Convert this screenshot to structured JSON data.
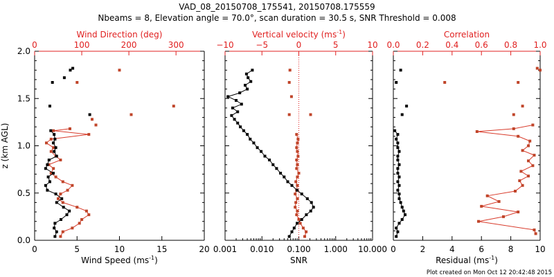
{
  "header": {
    "title": "VAD_08_20150708_175541, 20150708.175559",
    "subtitle": "Nbeams = 8, Elevation angle = 70.0°, scan duration = 30.5 s, SNR Threshold = 0.008"
  },
  "footer": {
    "plot_created": "Plot created on Mon Oct 12 20:42:48 2015"
  },
  "colors": {
    "black_series": "#000000",
    "red_series": "#c0452a",
    "red_axis": "#e02020"
  },
  "chart_data": [
    {
      "type": "scatter",
      "name": "wind-panel",
      "ylabel": "z (km AGL)",
      "ylim": [
        0,
        2
      ],
      "yticks": [
        "0.0",
        "0.5",
        "1.0",
        "1.5",
        "2.0"
      ],
      "bottom_axis": {
        "label_text": "Wind Speed (ms",
        "label_sup": "-1",
        "label_close": ")",
        "range": [
          0,
          20
        ],
        "ticks": [
          {
            "v": 0,
            "t": "0"
          },
          {
            "v": 5,
            "t": "5"
          },
          {
            "v": 10,
            "t": "10"
          },
          {
            "v": 15,
            "t": "15"
          },
          {
            "v": 20,
            "t": "20"
          }
        ]
      },
      "top_axis": {
        "label": "Wind Direction (deg)",
        "range": [
          0,
          360
        ],
        "ticks": [
          {
            "v": 0,
            "t": "0"
          },
          {
            "v": 100,
            "t": "100"
          },
          {
            "v": 200,
            "t": "200"
          },
          {
            "v": 300,
            "t": "300"
          }
        ]
      },
      "black_series": {
        "name": "Wind Speed",
        "axis": "bottom",
        "points": [
          [
            2.4,
            0.04
          ],
          [
            2.6,
            0.09
          ],
          [
            2.3,
            0.13
          ],
          [
            2.4,
            0.18
          ],
          [
            3.1,
            0.22
          ],
          [
            3.8,
            0.27
          ],
          [
            4.1,
            0.31
          ],
          [
            3.4,
            0.35
          ],
          [
            2.6,
            0.4
          ],
          [
            3.2,
            0.44
          ],
          [
            2.5,
            0.49
          ],
          [
            1.5,
            0.53
          ],
          [
            1.3,
            0.58
          ],
          [
            1.8,
            0.62
          ],
          [
            1.6,
            0.67
          ],
          [
            2.2,
            0.71
          ],
          [
            1.3,
            0.76
          ],
          [
            1.5,
            0.8
          ],
          [
            1.7,
            0.85
          ],
          [
            2.6,
            0.89
          ],
          [
            2.3,
            0.94
          ],
          [
            2.5,
            0.98
          ],
          [
            2.2,
            1.03
          ],
          [
            2.4,
            1.07
          ],
          [
            2.3,
            1.12
          ],
          [
            1.9,
            1.16
          ]
        ],
        "isolated": [
          [
            1.8,
            1.42
          ],
          [
            6.5,
            1.33
          ],
          [
            2.1,
            1.67
          ],
          [
            3.5,
            1.72
          ],
          [
            4.2,
            1.8
          ],
          [
            4.5,
            1.82
          ]
        ]
      },
      "red_series": {
        "name": "Wind Direction",
        "axis": "top",
        "points": [
          [
            55,
            0.04
          ],
          [
            60,
            0.09
          ],
          [
            80,
            0.13
          ],
          [
            95,
            0.18
          ],
          [
            100,
            0.22
          ],
          [
            115,
            0.27
          ],
          [
            110,
            0.31
          ],
          [
            90,
            0.35
          ],
          [
            60,
            0.4
          ],
          [
            50,
            0.44
          ],
          [
            55,
            0.49
          ],
          [
            70,
            0.53
          ],
          [
            80,
            0.58
          ],
          [
            60,
            0.62
          ],
          [
            45,
            0.67
          ],
          [
            35,
            0.71
          ],
          [
            40,
            0.76
          ],
          [
            30,
            0.8
          ],
          [
            55,
            0.85
          ],
          [
            45,
            0.89
          ],
          [
            35,
            0.94
          ],
          [
            40,
            0.98
          ],
          [
            25,
            1.03
          ],
          [
            35,
            1.07
          ],
          [
            115,
            1.12
          ],
          [
            40,
            1.16
          ],
          [
            75,
            1.18
          ]
        ],
        "isolated": [
          [
            130,
            1.22
          ],
          [
            122,
            1.28
          ],
          [
            295,
            1.42
          ],
          [
            205,
            1.33
          ],
          [
            90,
            1.67
          ],
          [
            180,
            1.8
          ]
        ]
      }
    },
    {
      "type": "scatter",
      "name": "snr-panel",
      "ylim": [
        0,
        2
      ],
      "bottom_axis": {
        "label": "SNR",
        "range_log10": [
          -3,
          1
        ],
        "ticks": [
          {
            "v": -3,
            "t": "0.001"
          },
          {
            "v": -2,
            "t": "0.010"
          },
          {
            "v": -1,
            "t": "0.100"
          },
          {
            "v": 0,
            "t": "1.000"
          },
          {
            "v": 1,
            "t": "10.000"
          }
        ]
      },
      "top_axis": {
        "label_text": "Vertical velocity (ms",
        "label_sup": "-1",
        "label_close": ")",
        "range": [
          -10,
          10
        ],
        "ticks": [
          {
            "v": -10,
            "t": "−10"
          },
          {
            "v": -5,
            "t": "−5"
          },
          {
            "v": 0,
            "t": "0"
          },
          {
            "v": 5,
            "t": "5"
          },
          {
            "v": 10,
            "t": "10"
          }
        ],
        "reference_line": 0
      },
      "black_series": {
        "name": "SNR",
        "axis": "bottom_log",
        "points": [
          [
            0.055,
            0.04
          ],
          [
            0.065,
            0.09
          ],
          [
            0.075,
            0.13
          ],
          [
            0.09,
            0.18
          ],
          [
            0.12,
            0.22
          ],
          [
            0.16,
            0.27
          ],
          [
            0.21,
            0.31
          ],
          [
            0.25,
            0.35
          ],
          [
            0.22,
            0.4
          ],
          [
            0.17,
            0.44
          ],
          [
            0.12,
            0.49
          ],
          [
            0.09,
            0.53
          ],
          [
            0.065,
            0.58
          ],
          [
            0.05,
            0.62
          ],
          [
            0.04,
            0.67
          ],
          [
            0.032,
            0.71
          ],
          [
            0.025,
            0.76
          ],
          [
            0.02,
            0.8
          ],
          [
            0.016,
            0.85
          ],
          [
            0.012,
            0.89
          ],
          [
            0.0095,
            0.94
          ],
          [
            0.0075,
            0.98
          ],
          [
            0.006,
            1.03
          ],
          [
            0.0048,
            1.07
          ],
          [
            0.004,
            1.12
          ],
          [
            0.0032,
            1.16
          ],
          [
            0.0026,
            1.2
          ],
          [
            0.0022,
            1.24
          ],
          [
            0.0018,
            1.28
          ],
          [
            0.0015,
            1.32
          ],
          [
            0.0022,
            1.36
          ],
          [
            0.0016,
            1.4
          ],
          [
            0.0028,
            1.44
          ],
          [
            0.002,
            1.48
          ],
          [
            0.0012,
            1.52
          ],
          [
            0.0025,
            1.56
          ],
          [
            0.004,
            1.6
          ],
          [
            0.0035,
            1.64
          ],
          [
            0.005,
            1.68
          ],
          [
            0.0042,
            1.72
          ],
          [
            0.0038,
            1.76
          ],
          [
            0.0055,
            1.8
          ]
        ]
      },
      "red_series": {
        "name": "Vertical velocity",
        "axis": "top",
        "points": [
          [
            0.8,
            0.04
          ],
          [
            1.0,
            0.09
          ],
          [
            0.6,
            0.13
          ],
          [
            0.2,
            0.18
          ],
          [
            0.0,
            0.22
          ],
          [
            -0.3,
            0.27
          ],
          [
            -0.2,
            0.31
          ],
          [
            -0.5,
            0.35
          ],
          [
            -0.4,
            0.4
          ],
          [
            -0.2,
            0.44
          ],
          [
            -0.5,
            0.49
          ],
          [
            -0.3,
            0.53
          ],
          [
            -0.2,
            0.58
          ],
          [
            -0.4,
            0.62
          ],
          [
            -0.2,
            0.67
          ],
          [
            0.0,
            0.71
          ],
          [
            -0.3,
            0.76
          ],
          [
            -0.2,
            0.8
          ],
          [
            -0.3,
            0.85
          ],
          [
            -0.1,
            0.89
          ],
          [
            -0.2,
            0.94
          ],
          [
            -0.3,
            0.98
          ],
          [
            -0.2,
            1.03
          ],
          [
            -0.1,
            1.07
          ],
          [
            -0.3,
            1.12
          ]
        ],
        "isolated": [
          [
            -1.3,
            1.33
          ],
          [
            1.6,
            1.33
          ],
          [
            -1.0,
            1.52
          ],
          [
            -1.3,
            1.67
          ],
          [
            -1.2,
            1.8
          ]
        ]
      }
    },
    {
      "type": "scatter",
      "name": "residual-panel",
      "ylim": [
        0,
        2
      ],
      "bottom_axis": {
        "label_text": "Residual (ms",
        "label_sup": "-1",
        "label_close": ")",
        "range": [
          0,
          10
        ],
        "ticks": [
          {
            "v": 0,
            "t": "0"
          },
          {
            "v": 2,
            "t": "2"
          },
          {
            "v": 4,
            "t": "4"
          },
          {
            "v": 6,
            "t": "6"
          },
          {
            "v": 8,
            "t": "8"
          },
          {
            "v": 10,
            "t": "10"
          }
        ]
      },
      "top_axis": {
        "label": "Correlation",
        "range": [
          0,
          1
        ],
        "ticks": [
          {
            "v": 0,
            "t": "0.0"
          },
          {
            "v": 0.2,
            "t": "0.2"
          },
          {
            "v": 0.4,
            "t": "0.4"
          },
          {
            "v": 0.6,
            "t": "0.6"
          },
          {
            "v": 0.8,
            "t": "0.8"
          },
          {
            "v": 1,
            "t": "1.0"
          }
        ]
      },
      "black_series": {
        "name": "Residual",
        "axis": "bottom",
        "points": [
          [
            0.2,
            0.04
          ],
          [
            0.3,
            0.09
          ],
          [
            0.2,
            0.13
          ],
          [
            0.4,
            0.18
          ],
          [
            0.6,
            0.22
          ],
          [
            0.8,
            0.27
          ],
          [
            0.7,
            0.31
          ],
          [
            0.6,
            0.35
          ],
          [
            0.5,
            0.4
          ],
          [
            0.4,
            0.44
          ],
          [
            0.4,
            0.49
          ],
          [
            0.3,
            0.53
          ],
          [
            0.4,
            0.58
          ],
          [
            0.3,
            0.62
          ],
          [
            0.4,
            0.67
          ],
          [
            0.3,
            0.71
          ],
          [
            0.3,
            0.76
          ],
          [
            0.4,
            0.8
          ],
          [
            0.3,
            0.85
          ],
          [
            0.3,
            0.89
          ],
          [
            0.4,
            0.94
          ],
          [
            0.3,
            0.98
          ],
          [
            0.3,
            1.03
          ],
          [
            0.2,
            1.07
          ],
          [
            0.3,
            1.12
          ],
          [
            0.1,
            1.16
          ]
        ],
        "isolated": [
          [
            0.6,
            1.33
          ],
          [
            0.9,
            1.42
          ],
          [
            0.2,
            1.67
          ],
          [
            0.5,
            1.8
          ]
        ]
      },
      "red_series": {
        "name": "Correlation",
        "axis": "top",
        "points": [
          [
            0.97,
            0.07
          ],
          [
            0.96,
            0.11
          ],
          [
            0.58,
            0.2
          ],
          [
            0.75,
            0.25
          ],
          [
            0.85,
            0.3
          ],
          [
            0.6,
            0.36
          ],
          [
            0.72,
            0.41
          ],
          [
            0.64,
            0.47
          ],
          [
            0.83,
            0.52
          ],
          [
            0.88,
            0.58
          ],
          [
            0.86,
            0.63
          ],
          [
            0.92,
            0.68
          ],
          [
            0.87,
            0.73
          ],
          [
            0.95,
            0.79
          ],
          [
            0.92,
            0.84
          ],
          [
            0.96,
            0.9
          ],
          [
            0.88,
            0.95
          ],
          [
            0.92,
            1.0
          ],
          [
            0.93,
            1.05
          ],
          [
            0.85,
            1.1
          ],
          [
            0.57,
            1.15
          ],
          [
            0.82,
            1.18
          ],
          [
            0.95,
            1.22
          ]
        ],
        "isolated": [
          [
            0.82,
            1.33
          ],
          [
            0.88,
            1.42
          ],
          [
            0.35,
            1.67
          ],
          [
            0.85,
            1.67
          ],
          [
            1.0,
            1.8
          ],
          [
            0.98,
            1.82
          ]
        ]
      }
    }
  ]
}
